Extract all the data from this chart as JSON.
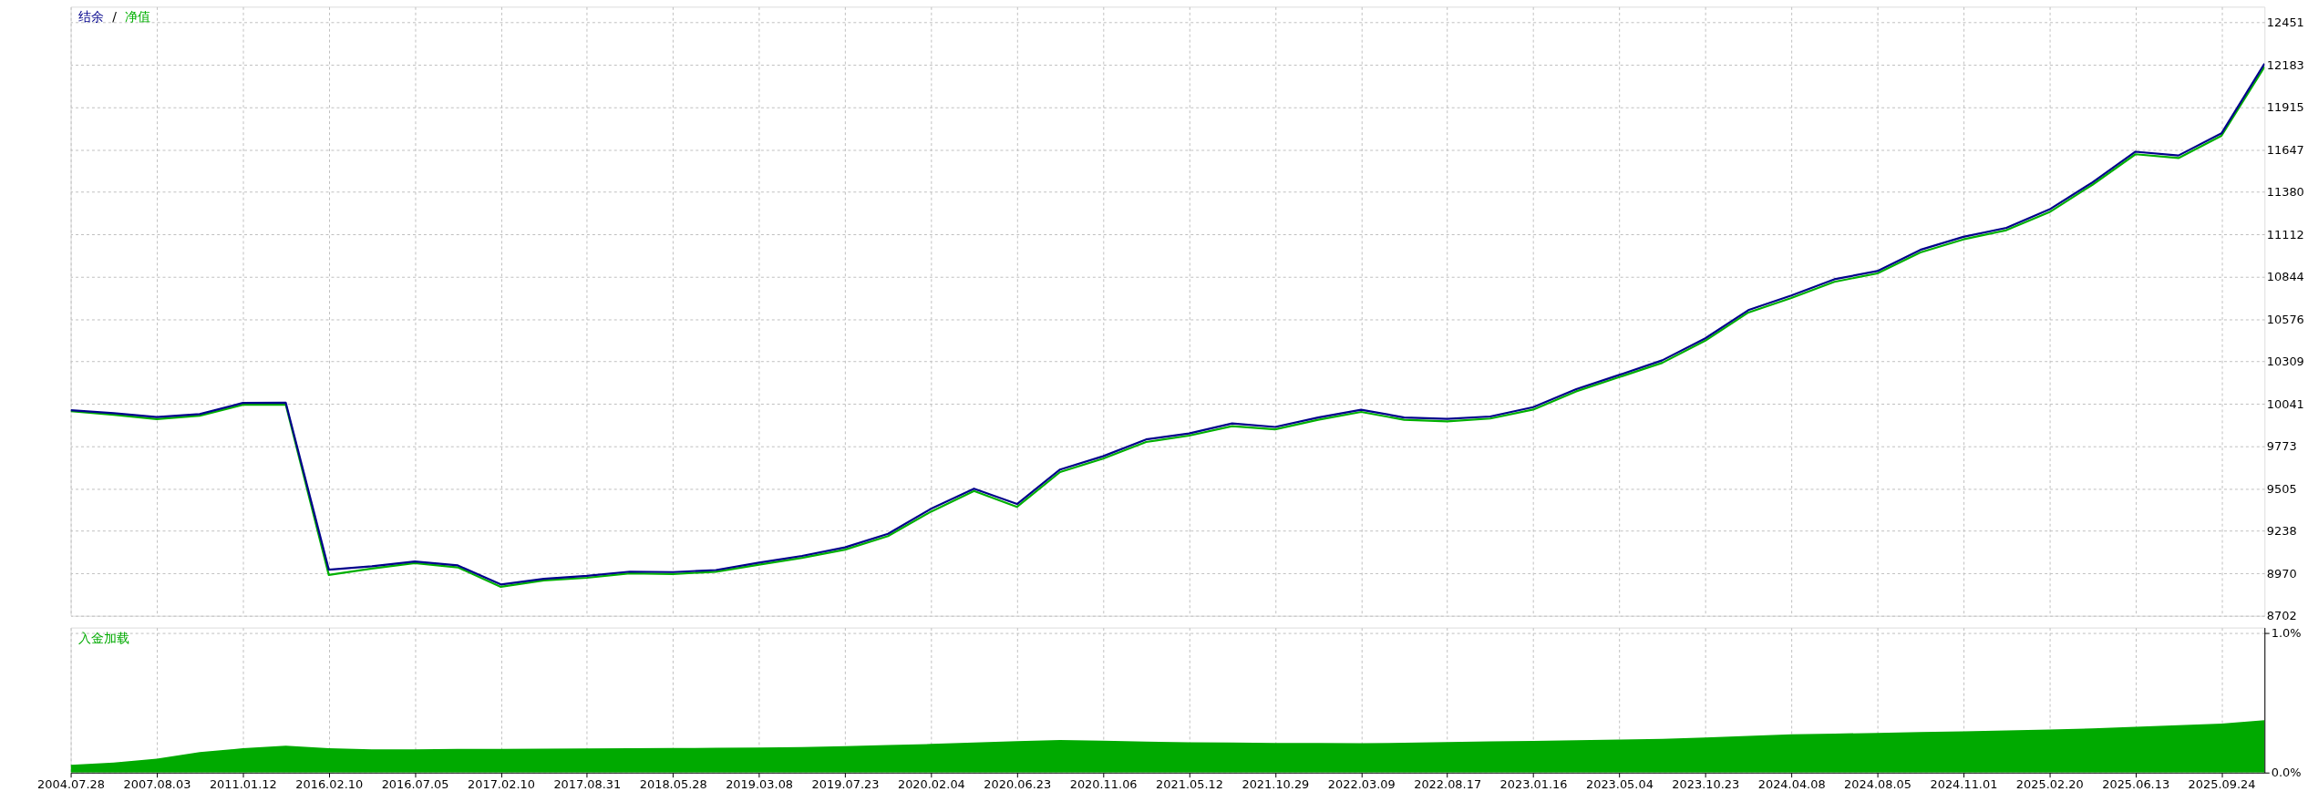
{
  "chart_data": [
    {
      "type": "line",
      "legend": "top left",
      "grid": true,
      "tick_labels": "y",
      "annotations": [
        "/"
      ],
      "ylim": [
        8702,
        12550
      ],
      "yticks": [
        8702,
        8970,
        9238,
        9505,
        9773,
        10041,
        10309,
        10576,
        10844,
        11112,
        11380,
        11647,
        11915,
        12183,
        12451
      ],
      "categories": [
        "2004.07.28",
        null,
        "2007.08.03",
        null,
        "2011.01.12",
        null,
        "2016.02.10",
        null,
        "2016.07.05",
        null,
        "2017.02.10",
        null,
        "2017.08.31",
        null,
        "2018.05.28",
        null,
        "2019.03.08",
        null,
        "2019.07.23",
        null,
        "2020.02.04",
        null,
        "2020.06.23",
        null,
        "2020.11.06",
        null,
        "2021.05.12",
        null,
        "2021.10.29",
        null,
        "2022.03.09",
        null,
        "2022.08.17",
        null,
        "2023.01.16",
        null,
        "2023.05.04",
        null,
        "2023.10.23",
        null,
        "2024.04.08",
        null,
        "2024.08.05",
        null,
        "2024.11.01",
        null,
        "2025.02.20",
        null,
        "2025.06.13",
        null,
        "2025.09.24",
        null
      ],
      "series": [
        {
          "name": "净值",
          "color": "#00b000",
          "values": [
            9995,
            9972,
            9945,
            9966,
            10035,
            10036,
            8960,
            9000,
            9035,
            9008,
            8885,
            8925,
            8942,
            8970,
            8966,
            8980,
            9025,
            9068,
            9120,
            9205,
            9360,
            9490,
            9390,
            9610,
            9695,
            9800,
            9840,
            9900,
            9880,
            9940,
            9990,
            9940,
            9930,
            9948,
            10005,
            10120,
            10210,
            10300,
            10440,
            10618,
            10710,
            10812,
            10865,
            10998,
            11080,
            11138,
            11252,
            11425,
            11618,
            11594,
            11735,
            12170
          ]
        },
        {
          "name": "结余",
          "color": "#00008b",
          "values": [
            10001,
            9982,
            9958,
            9976,
            10047,
            10048,
            8993,
            9015,
            9045,
            9020,
            8900,
            8936,
            8954,
            8981,
            8978,
            8991,
            9038,
            9080,
            9134,
            9220,
            9378,
            9505,
            9408,
            9626,
            9710,
            9816,
            9854,
            9917,
            9895,
            9955,
            10004,
            9955,
            9946,
            9961,
            10020,
            10134,
            10224,
            10316,
            10455,
            10633,
            10725,
            10828,
            10880,
            11014,
            11096,
            11153,
            11269,
            11440,
            11634,
            11610,
            11750,
            12190
          ]
        }
      ]
    },
    {
      "type": "area",
      "legend": "top left",
      "grid": true,
      "ylim": [
        0,
        1.04
      ],
      "yticks": [
        {
          "value": 0,
          "label": "0.0%"
        },
        {
          "value": 1,
          "label": "1.0%"
        }
      ],
      "categories": [
        "2004.07.28",
        null,
        "2007.08.03",
        null,
        "2011.01.12",
        null,
        "2016.02.10",
        null,
        "2016.07.05",
        null,
        "2017.02.10",
        null,
        "2017.08.31",
        null,
        "2018.05.28",
        null,
        "2019.03.08",
        null,
        "2019.07.23",
        null,
        "2020.02.04",
        null,
        "2020.06.23",
        null,
        "2020.11.06",
        null,
        "2021.05.12",
        null,
        "2021.10.29",
        null,
        "2022.03.09",
        null,
        "2022.08.17",
        null,
        "2023.01.16",
        null,
        "2023.05.04",
        null,
        "2023.10.23",
        null,
        "2024.04.08",
        null,
        "2024.08.05",
        null,
        "2024.11.01",
        null,
        "2025.02.20",
        null,
        "2025.06.13",
        null,
        "2025.09.24",
        null
      ],
      "series": [
        {
          "name": "入金加载",
          "color": "#00aa00",
          "values": [
            0.055,
            0.072,
            0.1,
            0.147,
            0.174,
            0.193,
            0.175,
            0.166,
            0.167,
            0.169,
            0.17,
            0.172,
            0.173,
            0.175,
            0.176,
            0.178,
            0.179,
            0.183,
            0.19,
            0.198,
            0.205,
            0.215,
            0.226,
            0.233,
            0.228,
            0.222,
            0.217,
            0.215,
            0.213,
            0.212,
            0.21,
            0.214,
            0.219,
            0.223,
            0.227,
            0.232,
            0.236,
            0.242,
            0.252,
            0.263,
            0.274,
            0.279,
            0.285,
            0.29,
            0.296,
            0.302,
            0.309,
            0.317,
            0.328,
            0.34,
            0.352,
            0.375
          ]
        }
      ]
    }
  ]
}
